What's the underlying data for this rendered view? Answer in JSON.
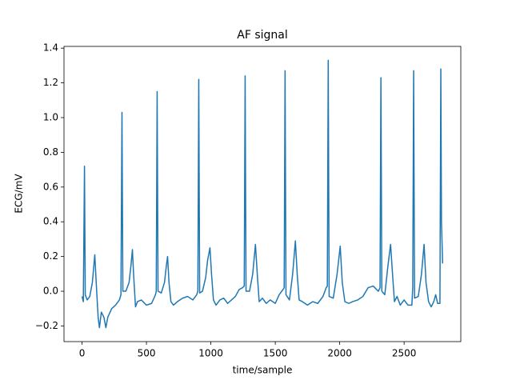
{
  "chart_data": {
    "type": "line",
    "title": "AF signal",
    "xlabel": "time/sample",
    "ylabel": "ECG/mV",
    "x": [
      0,
      10,
      19,
      25,
      40,
      60,
      80,
      99,
      110,
      125,
      135,
      150,
      170,
      185,
      200,
      230,
      260,
      290,
      302,
      310,
      317,
      340,
      365,
      380,
      391,
      400,
      415,
      430,
      460,
      500,
      540,
      570,
      576,
      583,
      590,
      615,
      640,
      655,
      664,
      675,
      690,
      710,
      740,
      780,
      820,
      860,
      890,
      899,
      906,
      913,
      935,
      960,
      975,
      993,
      1005,
      1020,
      1040,
      1070,
      1100,
      1130,
      1160,
      1190,
      1220,
      1245,
      1259,
      1266,
      1273,
      1300,
      1325,
      1346,
      1360,
      1375,
      1400,
      1430,
      1460,
      1500,
      1530,
      1560,
      1569,
      1576,
      1583,
      1610,
      1635,
      1656,
      1670,
      1685,
      1710,
      1750,
      1790,
      1830,
      1870,
      1895,
      1904,
      1911,
      1918,
      1950,
      1980,
      2004,
      2020,
      2040,
      2070,
      2100,
      2140,
      2180,
      2220,
      2260,
      2300,
      2313,
      2320,
      2327,
      2350,
      2375,
      2395,
      2410,
      2425,
      2445,
      2470,
      2500,
      2530,
      2560,
      2567,
      2574,
      2581,
      2610,
      2635,
      2655,
      2670,
      2690,
      2710,
      2730,
      2745,
      2760,
      2778,
      2785,
      2790,
      2799
    ],
    "series": [
      {
        "name": "ECG",
        "color": "#1f77b4",
        "values": [
          -0.03,
          -0.06,
          0.72,
          -0.02,
          -0.05,
          -0.03,
          0.05,
          0.21,
          0.05,
          -0.15,
          -0.21,
          -0.12,
          -0.15,
          -0.21,
          -0.15,
          -0.1,
          -0.08,
          -0.05,
          -0.02,
          1.03,
          0.0,
          0.0,
          0.05,
          0.15,
          0.24,
          0.1,
          -0.09,
          -0.06,
          -0.05,
          -0.08,
          -0.07,
          -0.02,
          0.0,
          1.15,
          0.0,
          -0.01,
          0.05,
          0.15,
          0.2,
          0.05,
          -0.06,
          -0.08,
          -0.06,
          -0.04,
          -0.03,
          -0.05,
          -0.02,
          0.0,
          1.22,
          -0.01,
          0.0,
          0.08,
          0.18,
          0.25,
          0.1,
          -0.05,
          -0.08,
          -0.05,
          -0.04,
          -0.07,
          -0.05,
          -0.03,
          0.01,
          0.02,
          0.03,
          1.24,
          0.0,
          0.0,
          0.1,
          0.27,
          0.1,
          -0.06,
          -0.04,
          -0.07,
          -0.05,
          -0.07,
          -0.02,
          0.01,
          0.02,
          1.27,
          -0.02,
          -0.05,
          0.1,
          0.29,
          0.1,
          -0.05,
          -0.06,
          -0.08,
          -0.06,
          -0.07,
          -0.03,
          0.02,
          0.03,
          1.33,
          -0.03,
          -0.04,
          0.1,
          0.26,
          0.05,
          -0.06,
          -0.07,
          -0.06,
          -0.05,
          -0.03,
          0.02,
          0.03,
          0.0,
          0.02,
          1.23,
          0.0,
          -0.02,
          0.15,
          0.27,
          0.1,
          -0.06,
          -0.03,
          -0.08,
          -0.05,
          -0.08,
          -0.08,
          0.02,
          1.27,
          -0.04,
          -0.03,
          0.1,
          0.27,
          0.05,
          -0.06,
          -0.09,
          -0.06,
          -0.02,
          -0.07,
          -0.07,
          1.28,
          0.4,
          0.16
        ]
      }
    ],
    "xlim": [
      -140,
      2940
    ],
    "xticks": [
      0,
      500,
      1000,
      1500,
      2000,
      2500
    ],
    "ylim": [
      -0.29,
      1.41
    ],
    "yticks": [
      {
        "value": -0.2,
        "label": "−0.2"
      },
      {
        "value": 0,
        "label": "0.0"
      },
      0.2,
      0.4,
      0.6,
      0.8,
      {
        "value": 1,
        "label": "1.0"
      },
      1.2,
      1.4
    ],
    "grid": false
  }
}
